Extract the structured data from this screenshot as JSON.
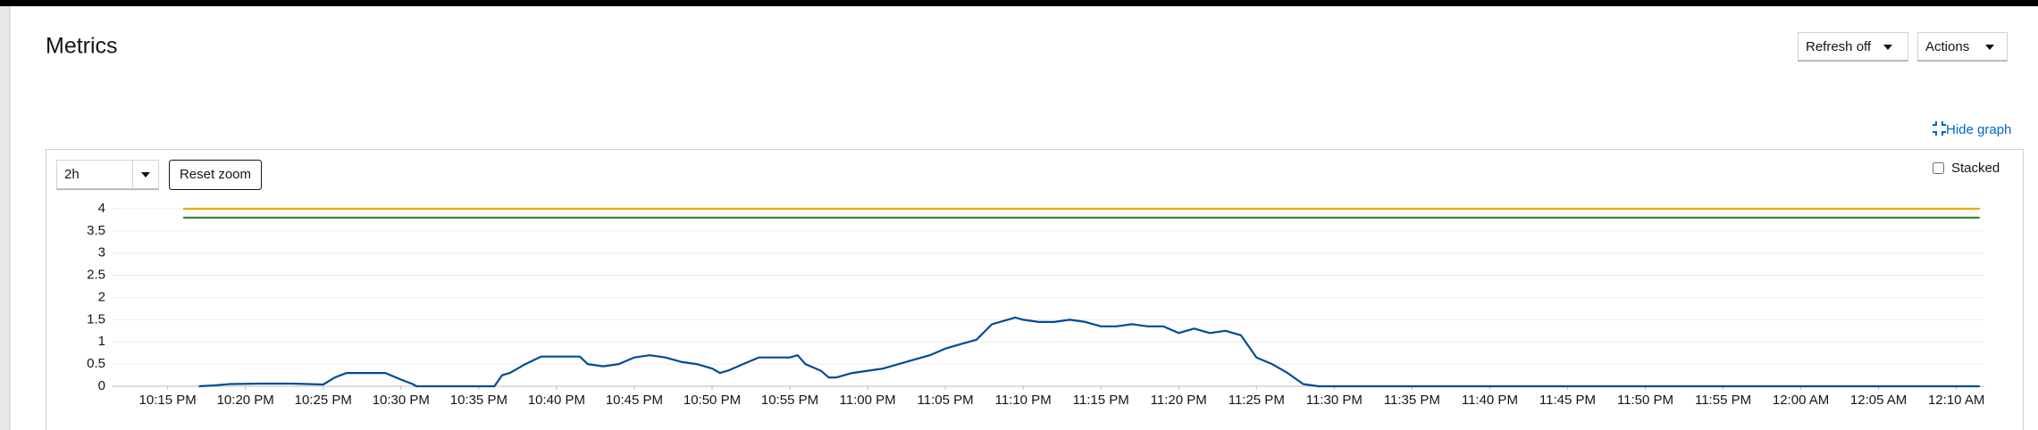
{
  "header": {
    "title": "Metrics",
    "refresh": "Refresh off",
    "actions": "Actions"
  },
  "toolbar": {
    "hide_graph": "Hide graph",
    "range": "2h",
    "reset_zoom": "Reset zoom",
    "stacked": "Stacked"
  },
  "chart_data": {
    "type": "line",
    "xlim": [
      -3.6,
      116.8
    ],
    "xticks": [
      {
        "value": 0,
        "label": "10:15 PM"
      },
      {
        "value": 5,
        "label": "10:20 PM"
      },
      {
        "value": 10,
        "label": "10:25 PM"
      },
      {
        "value": 15,
        "label": "10:30 PM"
      },
      {
        "value": 20,
        "label": "10:35 PM"
      },
      {
        "value": 25,
        "label": "10:40 PM"
      },
      {
        "value": 30,
        "label": "10:45 PM"
      },
      {
        "value": 35,
        "label": "10:50 PM"
      },
      {
        "value": 40,
        "label": "10:55 PM"
      },
      {
        "value": 45,
        "label": "11:00 PM"
      },
      {
        "value": 50,
        "label": "11:05 PM"
      },
      {
        "value": 55,
        "label": "11:10 PM"
      },
      {
        "value": 60,
        "label": "11:15 PM"
      },
      {
        "value": 65,
        "label": "11:20 PM"
      },
      {
        "value": 70,
        "label": "11:25 PM"
      },
      {
        "value": 75,
        "label": "11:30 PM"
      },
      {
        "value": 80,
        "label": "11:35 PM"
      },
      {
        "value": 85,
        "label": "11:40 PM"
      },
      {
        "value": 90,
        "label": "11:45 PM"
      },
      {
        "value": 95,
        "label": "11:50 PM"
      },
      {
        "value": 100,
        "label": "11:55 PM"
      },
      {
        "value": 105,
        "label": "12:00 AM"
      },
      {
        "value": 110,
        "label": "12:05 AM"
      },
      {
        "value": 115,
        "label": "12:10 AM"
      }
    ],
    "ylim": [
      0,
      4
    ],
    "yticks": [
      0,
      0.5,
      1,
      1.5,
      2,
      2.5,
      3,
      3.5,
      4
    ],
    "grid": true,
    "series": [
      {
        "color": "#f0ab00",
        "x": [
          1,
          116.5
        ],
        "values": [
          4,
          4
        ]
      },
      {
        "color": "#3e8635",
        "x": [
          1,
          116.5
        ],
        "values": [
          3.8,
          3.8
        ]
      },
      {
        "color": "#004b95",
        "x": [
          2,
          3,
          4,
          6,
          8,
          9,
          10,
          10.75,
          11.5,
          14,
          15,
          15.75,
          16,
          21,
          21.5,
          22,
          23,
          24,
          26.5,
          27,
          28,
          29,
          30,
          31,
          32,
          33,
          34,
          35,
          35.5,
          36,
          37,
          38,
          39,
          40,
          40.5,
          41,
          42,
          42.5,
          43,
          44,
          45,
          46,
          47,
          48,
          49,
          50,
          51,
          52,
          53,
          54,
          54.5,
          55,
          56,
          57,
          58,
          59,
          60,
          61,
          62,
          63,
          64,
          65,
          66,
          67,
          68,
          69,
          70,
          71,
          72,
          73,
          74,
          116.5
        ],
        "values": [
          0,
          0.02,
          0.05,
          0.06,
          0.06,
          0.05,
          0.04,
          0.2,
          0.3,
          0.3,
          0.15,
          0.05,
          0,
          0,
          0.25,
          0.3,
          0.5,
          0.67,
          0.67,
          0.5,
          0.45,
          0.5,
          0.65,
          0.7,
          0.65,
          0.55,
          0.5,
          0.4,
          0.3,
          0.35,
          0.5,
          0.65,
          0.65,
          0.65,
          0.7,
          0.5,
          0.35,
          0.2,
          0.2,
          0.3,
          0.35,
          0.4,
          0.5,
          0.6,
          0.7,
          0.85,
          0.95,
          1.05,
          1.4,
          1.5,
          1.55,
          1.5,
          1.45,
          1.45,
          1.5,
          1.45,
          1.35,
          1.35,
          1.4,
          1.35,
          1.35,
          1.2,
          1.3,
          1.2,
          1.25,
          1.15,
          0.65,
          0.5,
          0.3,
          0.05,
          0,
          0
        ]
      }
    ]
  }
}
